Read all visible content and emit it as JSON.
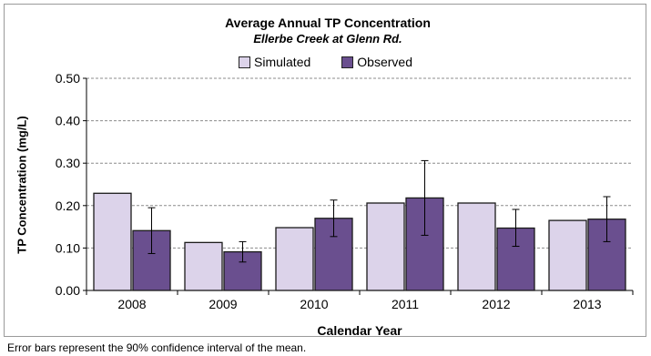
{
  "chart_data": {
    "type": "bar",
    "title": "Average Annual TP Concentration",
    "subtitle": "Ellerbe Creek at Glenn Rd.",
    "xlabel": "Calendar Year",
    "ylabel": "TP Concentration (mg/L)",
    "ylim": [
      0,
      0.5
    ],
    "yticks": [
      "0.00",
      "0.10",
      "0.20",
      "0.30",
      "0.40",
      "0.50"
    ],
    "grid": true,
    "legend_position": "top",
    "categories": [
      "2008",
      "2009",
      "2010",
      "2011",
      "2012",
      "2013"
    ],
    "series": [
      {
        "name": "Simulated",
        "color": "#dcd3ea",
        "values": [
          0.229,
          0.113,
          0.148,
          0.206,
          0.206,
          0.165
        ]
      },
      {
        "name": "Observed",
        "color": "#6a4f8f",
        "values": [
          0.141,
          0.091,
          0.17,
          0.218,
          0.147,
          0.168
        ],
        "error_low": [
          0.087,
          0.067,
          0.127,
          0.13,
          0.104,
          0.115
        ],
        "error_high": [
          0.195,
          0.115,
          0.213,
          0.306,
          0.191,
          0.221
        ]
      }
    ],
    "note": "Error bars represent the 90% confidence interval of the mean."
  }
}
